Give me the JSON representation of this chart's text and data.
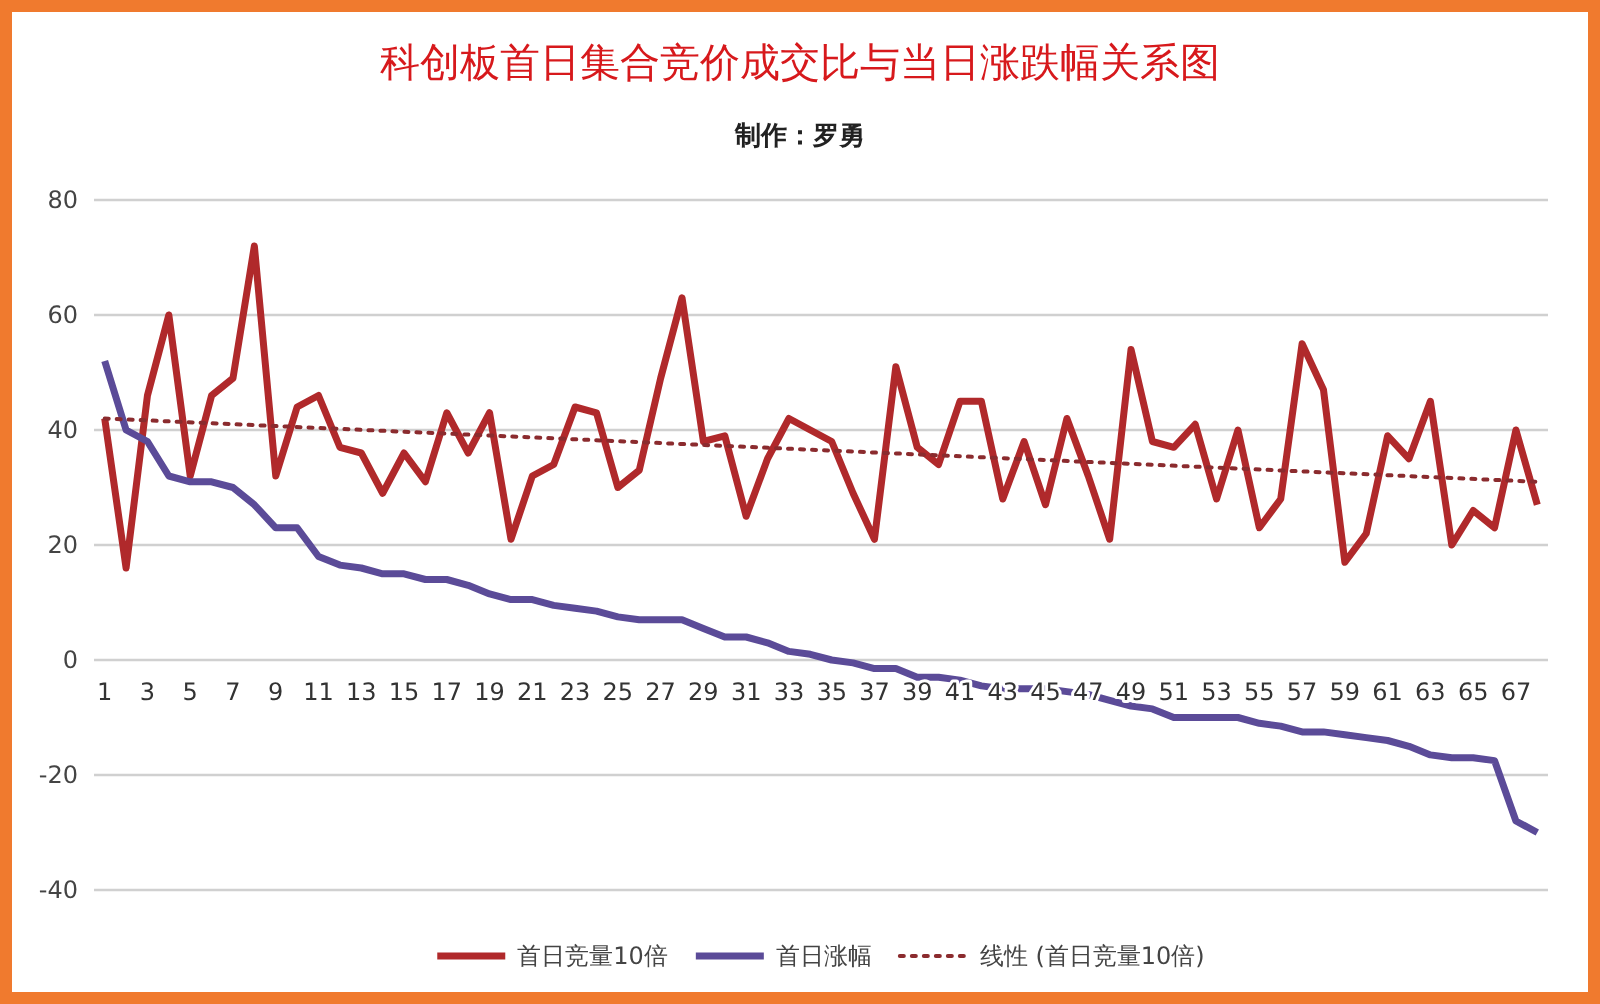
{
  "chart_data": {
    "type": "line",
    "title": "科创板首日集合竞价成交比与当日涨跌幅关系图",
    "subtitle": "制作：罗勇",
    "x": [
      1,
      2,
      3,
      4,
      5,
      6,
      7,
      8,
      9,
      10,
      11,
      12,
      13,
      14,
      15,
      16,
      17,
      18,
      19,
      20,
      21,
      22,
      23,
      24,
      25,
      26,
      27,
      28,
      29,
      30,
      31,
      32,
      33,
      34,
      35,
      36,
      37,
      38,
      39,
      40,
      41,
      42,
      43,
      44,
      45,
      46,
      47,
      48,
      49,
      50,
      51,
      52,
      53,
      54,
      55,
      56,
      57,
      58,
      59,
      60,
      61,
      62,
      63,
      64,
      65,
      66,
      67,
      68
    ],
    "xlim": [
      0.5,
      68.5
    ],
    "xticks": [
      1,
      3,
      5,
      7,
      9,
      11,
      13,
      15,
      17,
      19,
      21,
      23,
      25,
      27,
      29,
      31,
      33,
      35,
      37,
      39,
      41,
      43,
      45,
      47,
      49,
      51,
      53,
      55,
      57,
      59,
      61,
      63,
      65,
      67
    ],
    "ylim": [
      -40,
      80
    ],
    "yticks": [
      -40,
      -20,
      0,
      20,
      40,
      60,
      80
    ],
    "grid": "y",
    "legend": "bottom",
    "series": [
      {
        "name": "首日竞量10倍",
        "color": "#b0292b",
        "values": [
          42,
          16,
          46,
          60,
          32,
          46,
          49,
          72,
          32,
          44,
          46,
          37,
          36,
          29,
          36,
          31,
          43,
          36,
          43,
          21,
          32,
          34,
          44,
          43,
          30,
          33,
          49,
          63,
          38,
          39,
          25,
          35,
          42,
          40,
          38,
          29,
          21,
          51,
          37,
          34,
          45,
          45,
          28,
          38,
          27,
          42,
          32,
          21,
          54,
          38,
          37,
          41,
          28,
          40,
          23,
          28,
          55,
          47,
          17,
          22,
          39,
          35,
          45,
          20,
          26,
          23,
          40,
          27
        ]
      },
      {
        "name": "首日涨幅",
        "color": "#5b4b98",
        "values": [
          52,
          40,
          38,
          32,
          31,
          31,
          30,
          27,
          23,
          23,
          18,
          16.5,
          16,
          15,
          15,
          14,
          14,
          13,
          11.5,
          10.5,
          10.5,
          9.5,
          9,
          8.5,
          7.5,
          7,
          7,
          7,
          5.5,
          4,
          4,
          3,
          1.5,
          1,
          0,
          -0.5,
          -1.5,
          -1.5,
          -3,
          -3,
          -3.5,
          -4.5,
          -5,
          -5,
          -5,
          -5.5,
          -6,
          -7,
          -8,
          -8.5,
          -10,
          -10,
          -10,
          -10,
          -11,
          -11.5,
          -12.5,
          -12.5,
          -13,
          -13.5,
          -14,
          -15,
          -16.5,
          -17,
          -17,
          -17.5,
          -28,
          -30
        ]
      },
      {
        "name": "线性 (首日竞量10倍)",
        "color": "#8b2b2e",
        "line_style": "dotted",
        "x": [
          1,
          68
        ],
        "values": [
          42,
          31
        ]
      }
    ]
  }
}
